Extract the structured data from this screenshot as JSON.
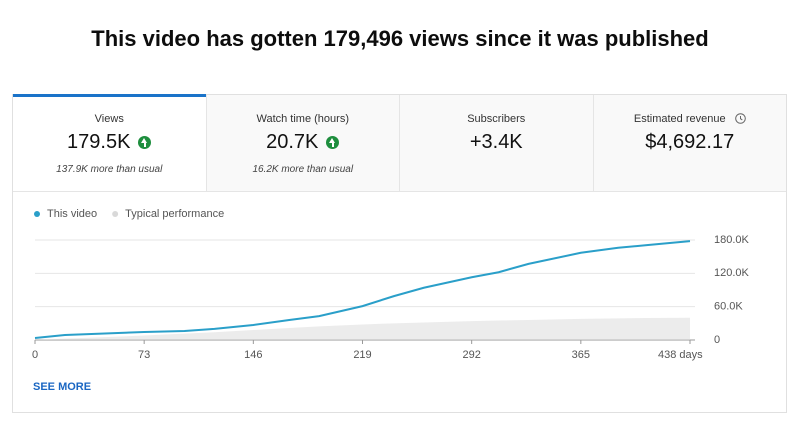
{
  "title": "This video has gotten 179,496 views since it was published",
  "cards": [
    {
      "label": "Views",
      "value": "179.5K",
      "note": "137.9K more than usual"
    },
    {
      "label": "Watch time (hours)",
      "value": "20.7K",
      "note": "16.2K more than usual"
    },
    {
      "label": "Subscribers",
      "value": "+3.4K"
    },
    {
      "label": "Estimated revenue",
      "value": "$4,692.17"
    }
  ],
  "chart_data": {
    "type": "line",
    "x": [
      0,
      20,
      40,
      73,
      100,
      120,
      146,
      170,
      190,
      219,
      240,
      260,
      292,
      310,
      330,
      365,
      390,
      410,
      438
    ],
    "series": [
      {
        "name": "This video",
        "color": "#2a9fc9",
        "values": [
          3600,
          9000,
          11000,
          14400,
          16200,
          20000,
          27000,
          36000,
          43000,
          61000,
          79000,
          94000,
          113000,
          122000,
          137000,
          157000,
          166000,
          171000,
          178000
        ]
      },
      {
        "name": "Typical performance",
        "color": "#d9d9d9",
        "kind": "area",
        "values": [
          0,
          2500,
          4500,
          8000,
          11500,
          14000,
          18000,
          21500,
          24500,
          28000,
          30000,
          31500,
          34000,
          35000,
          36000,
          38000,
          39000,
          39500,
          40000
        ]
      }
    ],
    "xlim": [
      0,
      438
    ],
    "xticks": [
      0,
      73,
      146,
      219,
      292,
      365,
      {
        "value": 438,
        "label": "438 days"
      }
    ],
    "ylim": [
      0,
      180000
    ],
    "yticks": [
      0,
      {
        "value": 60000,
        "label": "60.0K"
      },
      {
        "value": 120000,
        "label": "120.0K"
      },
      {
        "value": 180000,
        "label": "180.0K"
      }
    ],
    "grid": true
  },
  "see_more": "SEE MORE"
}
